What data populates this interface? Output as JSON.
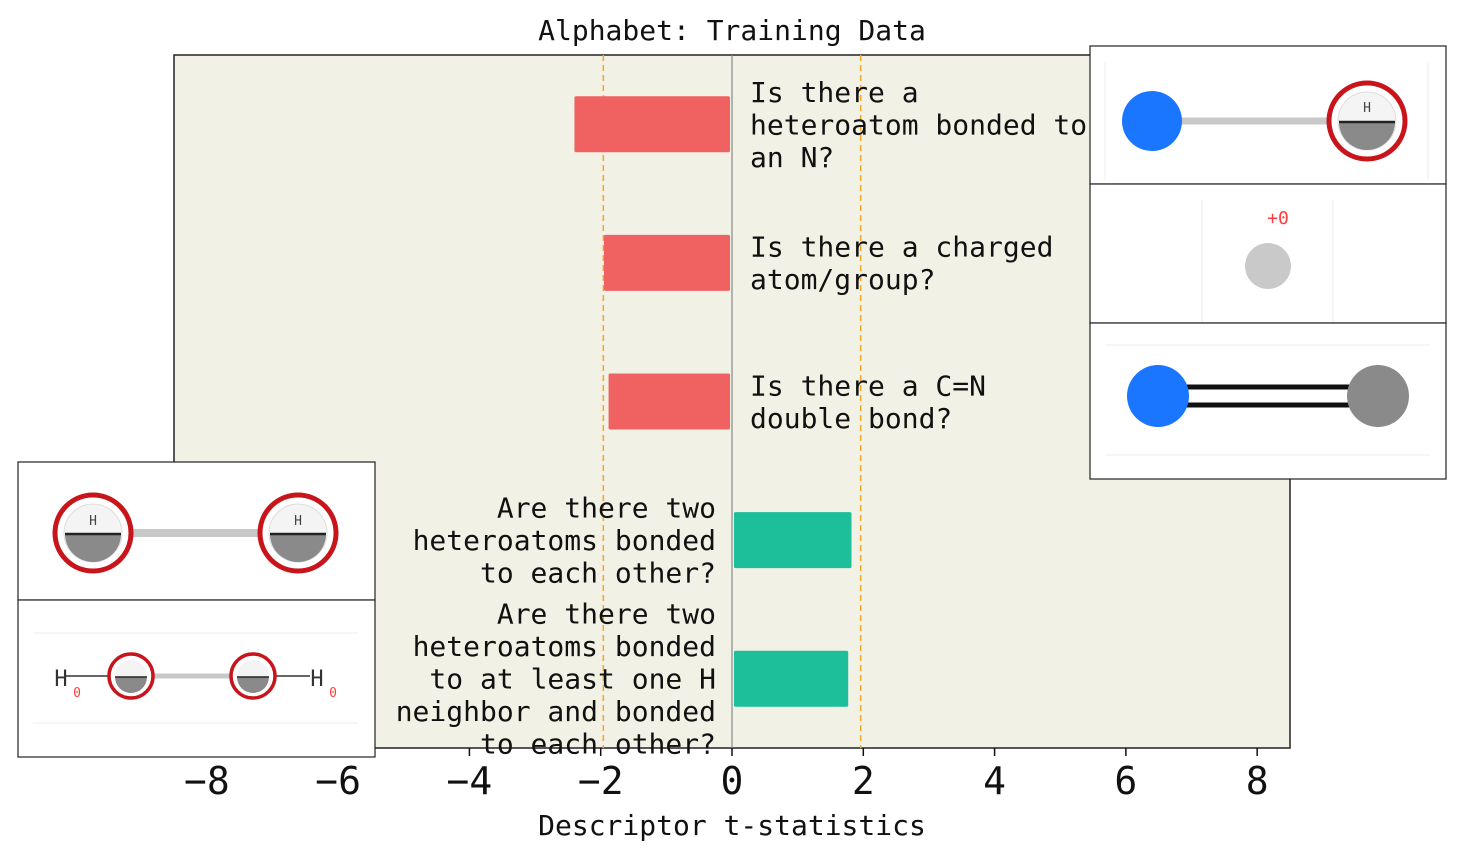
{
  "chart_data": {
    "type": "bar",
    "orientation": "horizontal",
    "title": "Alphabet: Training Data",
    "xlabel": "Descriptor t-statistics",
    "xlim": [
      -8.5,
      8.5
    ],
    "xticks": [
      "−8",
      "−6",
      "−4",
      "−2",
      "0",
      "2",
      "4",
      "6",
      "8"
    ],
    "xtick_values": [
      -8,
      -6,
      -4,
      -2,
      0,
      2,
      4,
      6,
      8
    ],
    "threshold_lines": [
      -1.96,
      1.96
    ],
    "background": "#f2f1e6",
    "bars": [
      {
        "label": [
          "Is there a",
          "heteroatom bonded to",
          "an N?"
        ],
        "value": -2.4,
        "color": "#f06262",
        "side": "right"
      },
      {
        "label": [
          "Is there a charged",
          "atom/group?"
        ],
        "value": -1.95,
        "color": "#f06262",
        "side": "right"
      },
      {
        "label": [
          "Is there a C=N",
          "double bond?"
        ],
        "value": -1.88,
        "color": "#f06262",
        "side": "right"
      },
      {
        "label": [
          "Are there two",
          "heteroatoms bonded",
          "to each other?"
        ],
        "value": 1.82,
        "color": "#1dbe9a",
        "side": "left"
      },
      {
        "label": [
          "Are there two",
          "heteroatoms bonded",
          "to at least one H",
          "neighbor and bonded",
          "to each other?"
        ],
        "value": 1.77,
        "color": "#1dbe9a",
        "side": "left"
      }
    ]
  },
  "insets": {
    "charge_label": "+0",
    "atom_h": "H",
    "subscript_zero": "0"
  }
}
